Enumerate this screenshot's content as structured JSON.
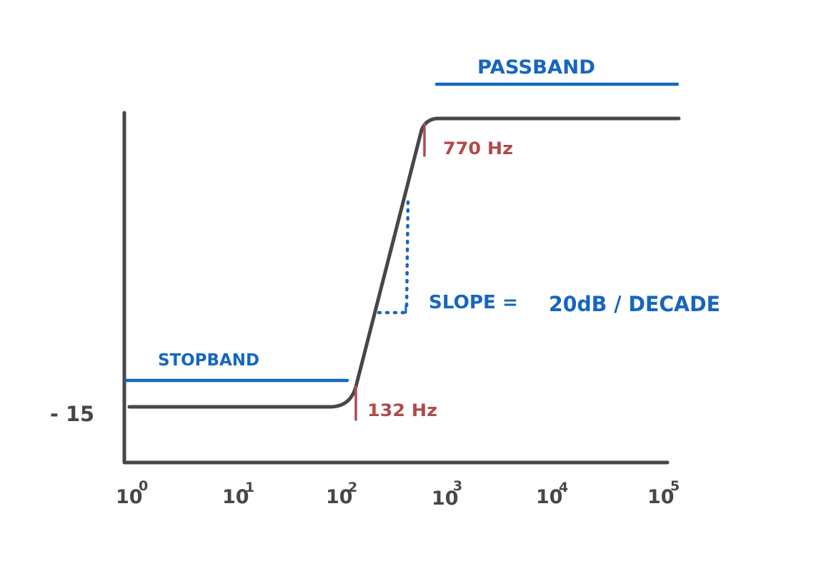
{
  "labels": {
    "passband": "PASSBAND",
    "stopband": "STOPBAND",
    "slope": "SLOPE =",
    "slope_value": "20dB / DECADE",
    "upper_cutoff": "770 Hz",
    "lower_cutoff": "132 Hz",
    "y_level": "- 15"
  },
  "x_ticks": [
    {
      "base": "10",
      "exp": "0"
    },
    {
      "base": "10",
      "exp": "1"
    },
    {
      "base": "10",
      "exp": "2"
    },
    {
      "base": "10",
      "exp": "3"
    },
    {
      "base": "10",
      "exp": "4"
    },
    {
      "base": "10",
      "exp": "5"
    }
  ],
  "colors": {
    "ink": "#474747",
    "blue": "#1666c0",
    "red": "#b24a4a"
  }
}
